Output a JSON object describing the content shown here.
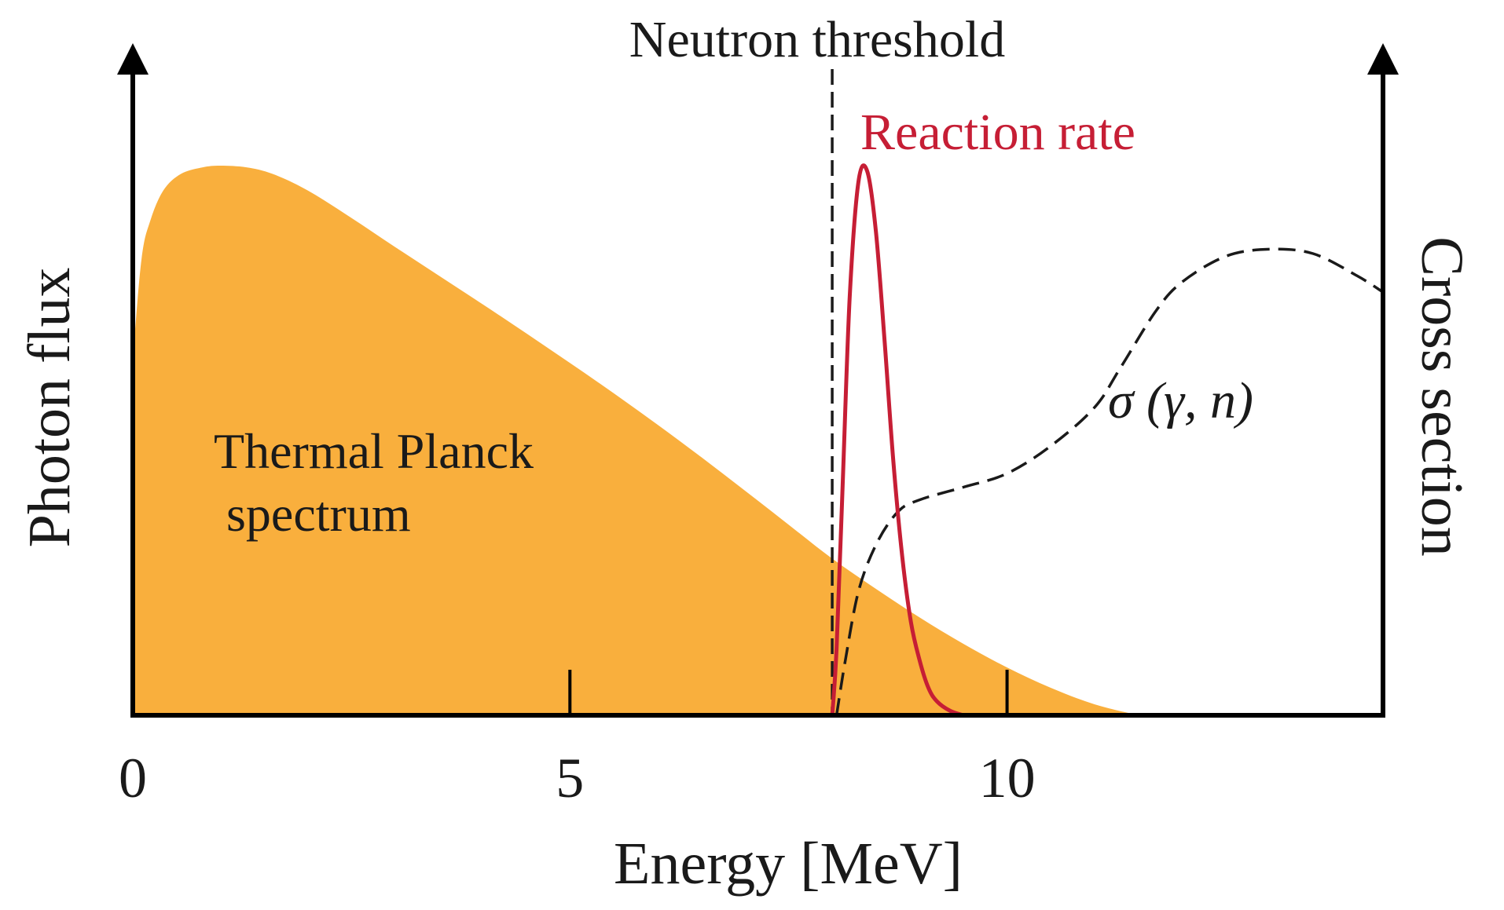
{
  "chart_data": {
    "type": "area",
    "title": "",
    "xlabel": "Energy [MeV]",
    "ylabel_left": "Photon flux",
    "ylabel_right": "Cross section",
    "xlim": [
      0,
      14.3
    ],
    "ylim": [
      0,
      1
    ],
    "xticks": [
      0,
      5,
      10
    ],
    "xtick_labels": [
      "0",
      "5",
      "10"
    ],
    "grid": false,
    "colors": {
      "planck": "#F9AF3D",
      "reaction": "#C61E35",
      "cross_section": "#1a1a1a",
      "axis": "#000000"
    },
    "threshold": {
      "label": "Neutron threshold",
      "x": 8.0
    },
    "series": [
      {
        "name": "Thermal Planck spectrum",
        "label_lines": [
          "Thermal Planck",
          " spectrum"
        ],
        "style": "filled-area",
        "x": [
          0.0,
          0.1,
          0.2,
          0.35,
          0.55,
          0.8,
          1.0,
          1.3,
          1.6,
          2.0,
          2.5,
          3.0,
          3.5,
          4.0,
          4.5,
          5.0,
          5.5,
          6.0,
          6.5,
          7.0,
          7.5,
          8.0,
          8.5,
          9.0,
          9.5,
          10.0,
          10.5,
          11.0,
          11.5
        ],
        "y": [
          0.65,
          0.83,
          0.9,
          0.955,
          0.985,
          0.997,
          1.0,
          0.997,
          0.985,
          0.955,
          0.905,
          0.852,
          0.8,
          0.748,
          0.695,
          0.641,
          0.586,
          0.529,
          0.47,
          0.409,
          0.347,
          0.285,
          0.23,
          0.178,
          0.13,
          0.087,
          0.05,
          0.02,
          0.0
        ]
      },
      {
        "name": "Reaction rate",
        "style": "solid-line",
        "x": [
          8.0,
          8.05,
          8.12,
          8.2,
          8.3,
          8.4,
          8.5,
          8.6,
          8.7,
          8.8,
          8.9,
          9.0,
          9.1,
          9.2,
          9.35,
          9.5
        ],
        "y": [
          0.0,
          0.12,
          0.42,
          0.76,
          0.97,
          0.99,
          0.88,
          0.68,
          0.46,
          0.29,
          0.17,
          0.1,
          0.05,
          0.025,
          0.008,
          0.0
        ]
      },
      {
        "name": "σ (γ, n)",
        "style": "dashed-line",
        "x": [
          8.05,
          8.15,
          8.3,
          8.5,
          8.75,
          9.0,
          9.5,
          10.0,
          10.5,
          11.0,
          11.3,
          11.7,
          12.0,
          12.5,
          13.0,
          13.5,
          14.0,
          14.3
        ],
        "y": [
          0.0,
          0.1,
          0.225,
          0.31,
          0.37,
          0.392,
          0.415,
          0.44,
          0.49,
          0.56,
          0.633,
          0.735,
          0.788,
          0.835,
          0.848,
          0.84,
          0.8,
          0.77
        ]
      }
    ],
    "annotations": [
      "Thermal Planck",
      " spectrum",
      "Reaction rate",
      "σ (γ, n)",
      "Neutron threshold"
    ]
  }
}
